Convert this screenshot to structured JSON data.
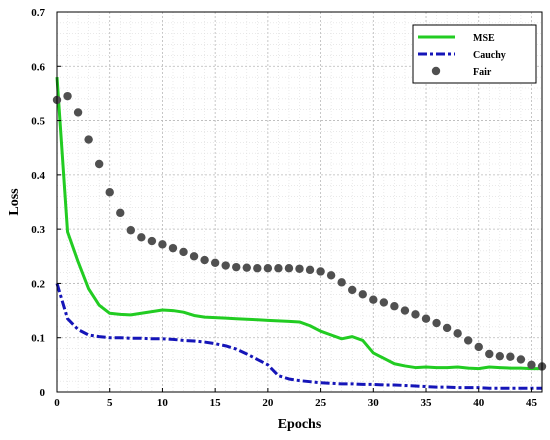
{
  "chart_data": {
    "type": "line",
    "xlabel": "Epochs",
    "ylabel": "Loss",
    "xlim": [
      0,
      46
    ],
    "ylim": [
      0,
      0.7
    ],
    "x_ticks": [
      0,
      5,
      10,
      15,
      20,
      25,
      30,
      35,
      40,
      45
    ],
    "y_ticks": [
      0,
      0.1,
      0.2,
      0.3,
      0.4,
      0.5,
      0.6,
      0.7
    ],
    "x_tick_labels": [
      "0",
      "5",
      "10",
      "15",
      "20",
      "25",
      "30",
      "35",
      "40",
      "45"
    ],
    "y_tick_labels": [
      "0",
      "0.1",
      "0.2",
      "0.3",
      "0.4",
      "0.5",
      "0.6",
      "0.7"
    ],
    "grid": true,
    "legend_position": "top-right",
    "series": [
      {
        "name": "MSE",
        "style": "solid-line",
        "color": "#22cc22",
        "x": [
          0,
          1,
          2,
          3,
          4,
          5,
          6,
          7,
          8,
          9,
          10,
          11,
          12,
          13,
          14,
          15,
          16,
          17,
          18,
          19,
          20,
          21,
          22,
          23,
          24,
          25,
          26,
          27,
          28,
          29,
          30,
          31,
          32,
          33,
          34,
          35,
          36,
          37,
          38,
          39,
          40,
          41,
          42,
          43,
          44,
          45,
          46
        ],
        "values": [
          0.58,
          0.295,
          0.24,
          0.19,
          0.16,
          0.145,
          0.143,
          0.142,
          0.145,
          0.148,
          0.151,
          0.15,
          0.147,
          0.141,
          0.138,
          0.137,
          0.136,
          0.135,
          0.134,
          0.133,
          0.132,
          0.131,
          0.13,
          0.129,
          0.122,
          0.112,
          0.105,
          0.098,
          0.102,
          0.095,
          0.072,
          0.062,
          0.052,
          0.048,
          0.045,
          0.046,
          0.045,
          0.045,
          0.046,
          0.044,
          0.043,
          0.046,
          0.045,
          0.044,
          0.044,
          0.043,
          0.043
        ]
      },
      {
        "name": "Cauchy",
        "style": "dash-dot-line",
        "color": "#1515b8",
        "x": [
          0,
          1,
          2,
          3,
          4,
          5,
          6,
          7,
          8,
          9,
          10,
          11,
          12,
          13,
          14,
          15,
          16,
          17,
          18,
          19,
          20,
          21,
          22,
          23,
          24,
          25,
          26,
          27,
          28,
          29,
          30,
          31,
          32,
          33,
          34,
          35,
          36,
          37,
          38,
          39,
          40,
          41,
          42,
          43,
          44,
          45,
          46
        ],
        "values": [
          0.2,
          0.135,
          0.115,
          0.105,
          0.102,
          0.1,
          0.1,
          0.099,
          0.099,
          0.098,
          0.098,
          0.097,
          0.095,
          0.094,
          0.092,
          0.089,
          0.085,
          0.079,
          0.07,
          0.06,
          0.05,
          0.03,
          0.024,
          0.021,
          0.019,
          0.017,
          0.016,
          0.015,
          0.015,
          0.014,
          0.014,
          0.013,
          0.013,
          0.012,
          0.011,
          0.01,
          0.009,
          0.009,
          0.008,
          0.008,
          0.008,
          0.007,
          0.007,
          0.007,
          0.007,
          0.007,
          0.007
        ]
      },
      {
        "name": "Fair",
        "style": "dots",
        "color": "#505050",
        "x": [
          0,
          1,
          2,
          3,
          4,
          5,
          6,
          7,
          8,
          9,
          10,
          11,
          12,
          13,
          14,
          15,
          16,
          17,
          18,
          19,
          20,
          21,
          22,
          23,
          24,
          25,
          26,
          27,
          28,
          29,
          30,
          31,
          32,
          33,
          34,
          35,
          36,
          37,
          38,
          39,
          40,
          41,
          42,
          43,
          44,
          45,
          46
        ],
        "values": [
          0.538,
          0.545,
          0.515,
          0.465,
          0.42,
          0.368,
          0.33,
          0.298,
          0.285,
          0.278,
          0.272,
          0.265,
          0.258,
          0.25,
          0.243,
          0.238,
          0.233,
          0.23,
          0.229,
          0.228,
          0.228,
          0.228,
          0.228,
          0.227,
          0.225,
          0.222,
          0.215,
          0.202,
          0.188,
          0.18,
          0.17,
          0.165,
          0.158,
          0.15,
          0.143,
          0.135,
          0.127,
          0.118,
          0.108,
          0.095,
          0.083,
          0.07,
          0.066,
          0.065,
          0.06,
          0.05,
          0.047
        ]
      }
    ]
  }
}
